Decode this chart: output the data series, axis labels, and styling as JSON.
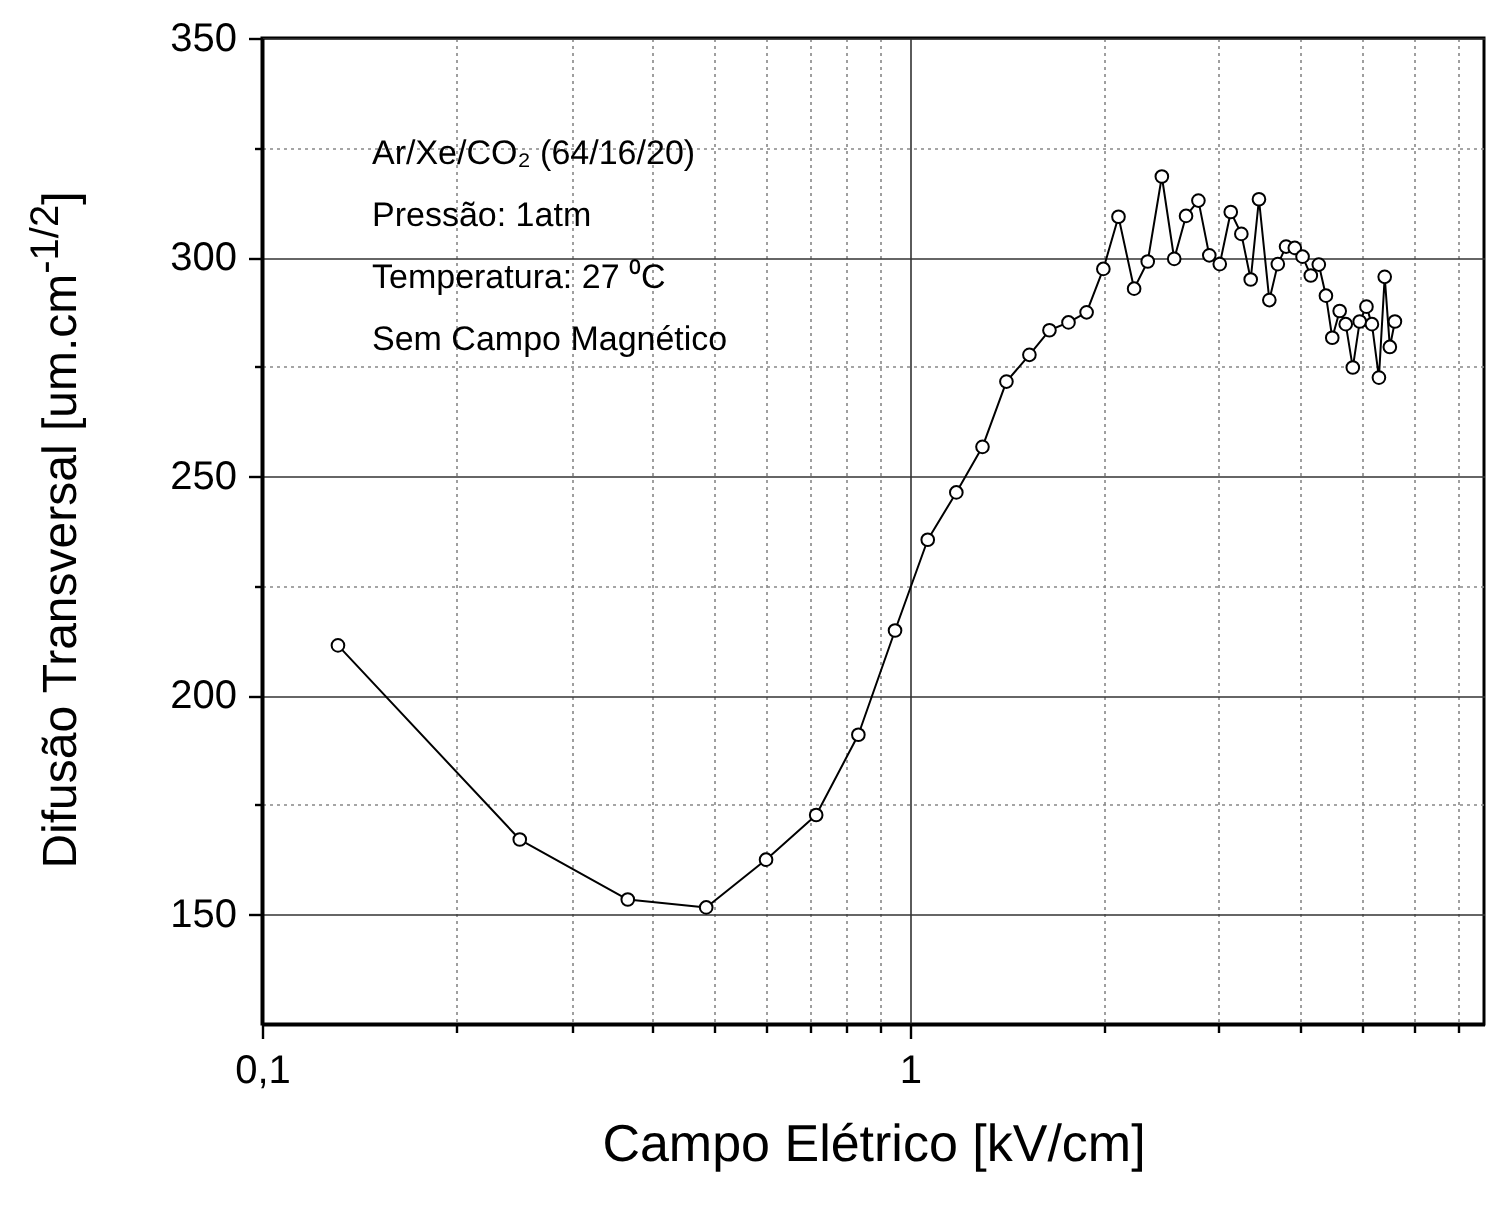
{
  "chart_data": {
    "type": "line",
    "xlabel": "Campo Elétrico [kV/cm]",
    "ylabel": "Difusão Transversal [um.cm$^{-1/2}$]",
    "annotations": [
      "Ar/Xe/CO₂ (64/16/20)",
      "Pressão: 1atm",
      "Temperatura: 27 ⁰C",
      "Sem Campo Magnético"
    ],
    "log": "x",
    "grid": true,
    "marker": "circle",
    "line_style": "solid",
    "xlim": [
      0.1,
      7.7
    ],
    "ylim": [
      125,
      350
    ],
    "xticks": [
      {
        "value": 0.1,
        "label": "0,1"
      },
      {
        "value": 0.2,
        "label": null
      },
      {
        "value": 0.3,
        "label": null
      },
      {
        "value": 0.4,
        "label": null
      },
      {
        "value": 0.5,
        "label": null
      },
      {
        "value": 0.6,
        "label": null
      },
      {
        "value": 0.7,
        "label": null
      },
      {
        "value": 0.8,
        "label": null
      },
      {
        "value": 0.9,
        "label": null
      },
      1,
      {
        "value": 2,
        "label": null
      },
      {
        "value": 3,
        "label": null
      },
      {
        "value": 4,
        "label": null
      },
      {
        "value": 5,
        "label": null
      },
      {
        "value": 6,
        "label": null
      },
      {
        "value": 7,
        "label": null
      }
    ],
    "yticks": [
      150,
      {
        "value": 175,
        "label": null
      },
      200,
      {
        "value": 225,
        "label": null
      },
      250,
      {
        "value": 275,
        "label": null
      },
      300,
      {
        "value": 325,
        "label": null
      },
      350
    ],
    "series": [
      {
        "color": "#000000",
        "x": [
          0.131,
          0.25,
          0.367,
          0.485,
          0.6,
          0.717,
          0.833,
          0.949,
          1.066,
          1.18,
          1.295,
          1.41,
          1.53,
          1.643,
          1.758,
          1.875,
          1.99,
          2.1,
          2.22,
          2.33,
          2.45,
          2.56,
          2.67,
          2.79,
          2.9,
          3.01,
          3.13,
          3.25,
          3.36,
          3.46,
          3.59,
          3.7,
          3.81,
          3.93,
          4.04,
          4.16,
          4.28,
          4.39,
          4.49,
          4.61,
          4.71,
          4.83,
          4.95,
          5.07,
          5.17,
          5.3,
          5.41,
          5.51,
          5.61
        ],
        "values": [
          211.4,
          167.1,
          153.4,
          151.6,
          162.5,
          172.7,
          191.0,
          214.8,
          235.5,
          246.3,
          256.7,
          271.6,
          277.7,
          283.3,
          285.1,
          287.4,
          297.3,
          309.2,
          292.8,
          299.0,
          318.4,
          299.6,
          309.4,
          312.9,
          300.4,
          298.4,
          310.3,
          305.3,
          294.9,
          313.2,
          290.2,
          298.4,
          302.4,
          302.1,
          300.1,
          295.8,
          298.3,
          291.2,
          281.6,
          287.7,
          284.7,
          274.8,
          285.3,
          288.7,
          284.7,
          272.5,
          295.5,
          279.5,
          285.3
        ]
      }
    ]
  }
}
